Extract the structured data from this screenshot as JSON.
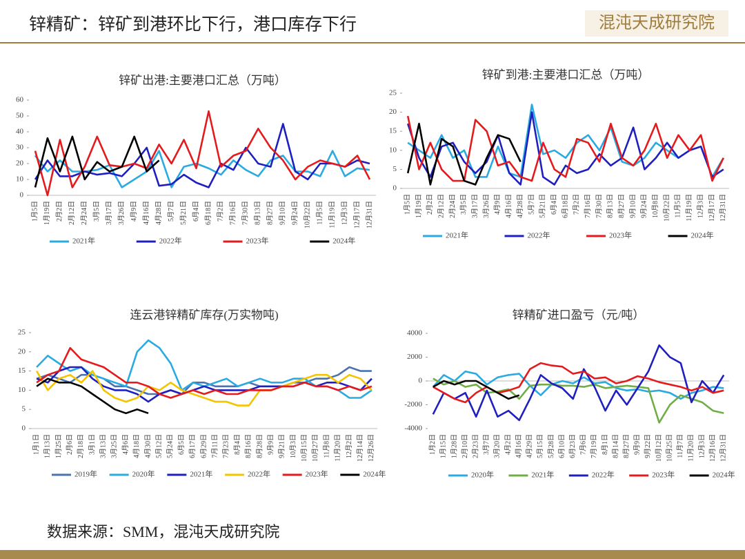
{
  "header": {
    "title": "锌精矿：锌矿到港环比下行，港口库存下行",
    "logo": "混沌天成研究院"
  },
  "footer": {
    "source": "数据来源：SMM，混沌天成研究院"
  },
  "chart_data": [
    {
      "type": "line",
      "title": "锌矿出港:主要港口汇总（万吨）",
      "categories": [
        "1月5日",
        "1月19日",
        "2月2日",
        "2月12日",
        "2月24日",
        "3月5日",
        "3月17日",
        "3月26日",
        "4月9日",
        "4月16日",
        "4月28日",
        "5月7日",
        "5月21日",
        "6月4日",
        "6月18日",
        "7月2日",
        "7月16日",
        "7月30日",
        "8月13日",
        "8月27日",
        "9月10日",
        "9月24日",
        "10月22日",
        "11月5日",
        "11月19日",
        "12月3日",
        "12月17日",
        "12月31日"
      ],
      "ylim": [
        0,
        60
      ],
      "yticks": [
        0,
        10,
        20,
        30,
        40,
        50,
        60
      ],
      "series": [
        {
          "name": "2021年",
          "color": "#29abe2",
          "values": [
            25,
            15,
            22,
            15,
            15,
            16,
            19,
            5,
            10,
            15,
            28,
            5,
            18,
            20,
            17,
            13,
            22,
            16,
            12,
            22,
            25,
            15,
            15,
            12,
            28,
            12,
            17,
            16
          ]
        },
        {
          "name": "2022年",
          "color": "#1f1fbf",
          "values": [
            10,
            22,
            12,
            12,
            15,
            13,
            14,
            12,
            20,
            30,
            6,
            7,
            13,
            8,
            5,
            20,
            16,
            30,
            20,
            18,
            45,
            15,
            10,
            20,
            20,
            18,
            22,
            20
          ]
        },
        {
          "name": "2023年",
          "color": "#e41a1c",
          "values": [
            28,
            0,
            35,
            5,
            18,
            37,
            19,
            18,
            20,
            17,
            32,
            20,
            35,
            17,
            53,
            18,
            25,
            28,
            42,
            30,
            22,
            10,
            18,
            22,
            20,
            18,
            25,
            10
          ]
        },
        {
          "name": "2024年",
          "color": "#000000",
          "values": [
            5,
            36,
            15,
            37,
            10,
            21,
            15,
            18,
            37,
            15,
            22,
            null,
            null,
            null,
            null,
            null,
            null,
            null,
            null,
            null,
            null,
            null,
            null,
            null,
            null,
            null,
            null,
            null
          ]
        }
      ]
    },
    {
      "type": "line",
      "title": "锌矿到港:主要港口汇总（万吨）",
      "categories": [
        "1月5日",
        "1月19日",
        "2月2日",
        "2月12日",
        "2月24日",
        "3月5日",
        "3月17日",
        "3月26日",
        "4月9日",
        "4月16日",
        "4月28日",
        "5月7日",
        "5月21日",
        "6月4日",
        "6月18日",
        "7月2日",
        "7月16日",
        "7月30日",
        "8月13日",
        "8月27日",
        "9月10日",
        "9月24日",
        "10月8日",
        "10月22日",
        "11月5日",
        "11月19日",
        "12月3日",
        "12月17日",
        "12月31日"
      ],
      "ylim": [
        0,
        25
      ],
      "yticks": [
        0,
        5,
        10,
        15,
        20,
        25
      ],
      "series": [
        {
          "name": "2021年",
          "color": "#29abe2",
          "values": [
            12,
            10,
            8,
            14,
            8,
            10,
            3,
            3,
            11,
            4,
            3,
            22,
            9,
            10,
            8,
            12,
            14,
            10,
            16,
            7,
            6,
            8,
            12,
            10,
            8,
            10,
            11,
            3,
            8
          ]
        },
        {
          "name": "2022年",
          "color": "#1f1fbf",
          "values": [
            17,
            8,
            3,
            11,
            12,
            7,
            4,
            7,
            14,
            4,
            1,
            20,
            3,
            1,
            6,
            4,
            5,
            9,
            6,
            8,
            16,
            5,
            8,
            12,
            8,
            10,
            11,
            3,
            5
          ]
        },
        {
          "name": "2023年",
          "color": "#e41a1c",
          "values": [
            19,
            5,
            12,
            5,
            2,
            2,
            18,
            15,
            6,
            7,
            3,
            2,
            12,
            5,
            3,
            13,
            12,
            7,
            17,
            8,
            6,
            10,
            17,
            8,
            14,
            10,
            14,
            2,
            8
          ]
        },
        {
          "name": "2024年",
          "color": "#000000",
          "values": [
            4,
            17,
            1,
            13,
            11,
            2,
            1,
            8,
            14,
            13,
            7,
            null,
            null,
            null,
            null,
            null,
            null,
            null,
            null,
            null,
            null,
            null,
            null,
            null,
            null,
            null,
            null,
            null,
            null
          ]
        }
      ]
    },
    {
      "type": "line",
      "title": "连云港锌精矿库存(万实物吨)",
      "categories": [
        "1月1日",
        "1月13日",
        "1月25日",
        "2月6日",
        "2月18日",
        "3月1日",
        "3月13日",
        "3月25日",
        "4月6日",
        "4月18日",
        "4月30日",
        "5月12日",
        "5月24日",
        "6月5日",
        "6月17日",
        "6月29日",
        "7月11日",
        "7月23日",
        "8月4日",
        "8月16日",
        "8月28日",
        "9月9日",
        "9月21日",
        "10月3日",
        "10月15日",
        "10月27日",
        "11月8日",
        "11月20日",
        "12月2日",
        "12月14日",
        "12月26日"
      ],
      "ylim": [
        0,
        25
      ],
      "yticks": [
        0,
        5,
        10,
        15,
        20,
        25
      ],
      "series": [
        {
          "name": "2019年",
          "color": "#4a72b0",
          "values": [
            13,
            14,
            13,
            12,
            14,
            14,
            13,
            11,
            11,
            10,
            9,
            9,
            10,
            9,
            12,
            12,
            11,
            11,
            11,
            12,
            11,
            11,
            11,
            12,
            12,
            13,
            13,
            14,
            16,
            15,
            15
          ]
        },
        {
          "name": "2020年",
          "color": "#29abe2",
          "values": [
            16,
            19,
            17,
            15,
            16,
            14,
            13,
            12,
            11,
            20,
            23,
            21,
            17,
            10,
            12,
            11,
            12,
            13,
            11,
            12,
            13,
            12,
            12,
            13,
            13,
            11,
            11,
            10,
            8,
            8,
            10
          ]
        },
        {
          "name": "2021年",
          "color": "#1f1fbf",
          "values": [
            13,
            12,
            15,
            16,
            16,
            13,
            11,
            10,
            10,
            9,
            7,
            9,
            10,
            9,
            10,
            11,
            10,
            10,
            10,
            10,
            11,
            11,
            11,
            11,
            12,
            11,
            12,
            12,
            11,
            10,
            13
          ]
        },
        {
          "name": "2022年",
          "color": "#f5c400",
          "values": [
            15,
            10,
            13,
            14,
            12,
            15,
            10,
            8,
            7,
            8,
            11,
            10,
            12,
            10,
            9,
            8,
            7,
            7,
            6,
            6,
            10,
            10,
            11,
            12,
            13,
            14,
            14,
            12,
            14,
            13,
            10
          ]
        },
        {
          "name": "2023年",
          "color": "#e41a1c",
          "values": [
            12,
            14,
            15,
            21,
            18,
            17,
            16,
            14,
            12,
            12,
            11,
            9,
            8,
            9,
            10,
            9,
            10,
            9,
            9,
            10,
            10,
            10,
            11,
            11,
            12,
            11,
            11,
            10,
            11,
            10,
            11
          ]
        },
        {
          "name": "2024年",
          "color": "#000000",
          "values": [
            11,
            13,
            12,
            12,
            11,
            9,
            7,
            5,
            4,
            5,
            4,
            null,
            null,
            null,
            null,
            null,
            null,
            null,
            null,
            null,
            null,
            null,
            null,
            null,
            null,
            null,
            null,
            null,
            null,
            null,
            null
          ]
        }
      ]
    },
    {
      "type": "line",
      "title": "锌精矿进口盈亏（元/吨）",
      "categories": [
        "1月2日",
        "1月15日",
        "1月28日",
        "2月10日",
        "2月23日",
        "3月7日",
        "3月20日",
        "4月2日",
        "4月16日",
        "4月29日",
        "5月15日",
        "5月28日",
        "6月10日",
        "6月23日",
        "7月6日",
        "7月19日",
        "8月1日",
        "8月14日",
        "8月27日",
        "9月9日",
        "9月22日",
        "10月12日",
        "10月25日",
        "11月7日",
        "11月20日",
        "12月3日",
        "12月16日",
        "12月31日"
      ],
      "ylim": [
        -4000,
        4000
      ],
      "yticks": [
        -4000,
        -2000,
        0,
        2000,
        4000
      ],
      "series": [
        {
          "name": "2020年",
          "color": "#29abe2",
          "values": [
            -500,
            500,
            0,
            800,
            600,
            -300,
            300,
            500,
            600,
            -400,
            -1200,
            -300,
            0,
            -200,
            300,
            -200,
            -100,
            -600,
            -800,
            -700,
            -900,
            -800,
            -1000,
            -1500,
            -1000,
            -800,
            -500,
            -600
          ]
        },
        {
          "name": "2021年",
          "color": "#70ad47",
          "values": [
            200,
            -300,
            0,
            -500,
            -300,
            -1000,
            -900,
            -700,
            -1500,
            -400,
            -300,
            -300,
            -400,
            -400,
            -500,
            -300,
            -600,
            -500,
            -400,
            -500,
            -600,
            -3500,
            -2000,
            -1200,
            -1500,
            -1800,
            -2500,
            -2700
          ]
        },
        {
          "name": "2022年",
          "color": "#1f1fbf",
          "values": [
            -2800,
            -1000,
            -1500,
            -1000,
            -3000,
            -800,
            -3000,
            -2500,
            -3300,
            -1500,
            500,
            -200,
            -600,
            -1500,
            1000,
            -500,
            -2500,
            -800,
            -2000,
            -600,
            800,
            3000,
            2000,
            1500,
            -1800,
            0,
            -1000,
            500
          ]
        },
        {
          "name": "2023年",
          "color": "#e41a1c",
          "values": [
            -500,
            -1000,
            -1500,
            -1800,
            -1000,
            -500,
            -1000,
            -800,
            -500,
            1000,
            1500,
            1300,
            1200,
            600,
            800,
            200,
            300,
            -200,
            0,
            400,
            200,
            -100,
            -300,
            -500,
            -800,
            -500,
            -1000,
            -800
          ]
        },
        {
          "name": "2024年",
          "color": "#000000",
          "values": [
            -500,
            0,
            -300,
            0,
            0,
            -500,
            -1000,
            -1500,
            -1200,
            null,
            null,
            null,
            null,
            null,
            null,
            null,
            null,
            null,
            null,
            null,
            null,
            null,
            null,
            null,
            null,
            null,
            null,
            null
          ]
        }
      ]
    }
  ]
}
